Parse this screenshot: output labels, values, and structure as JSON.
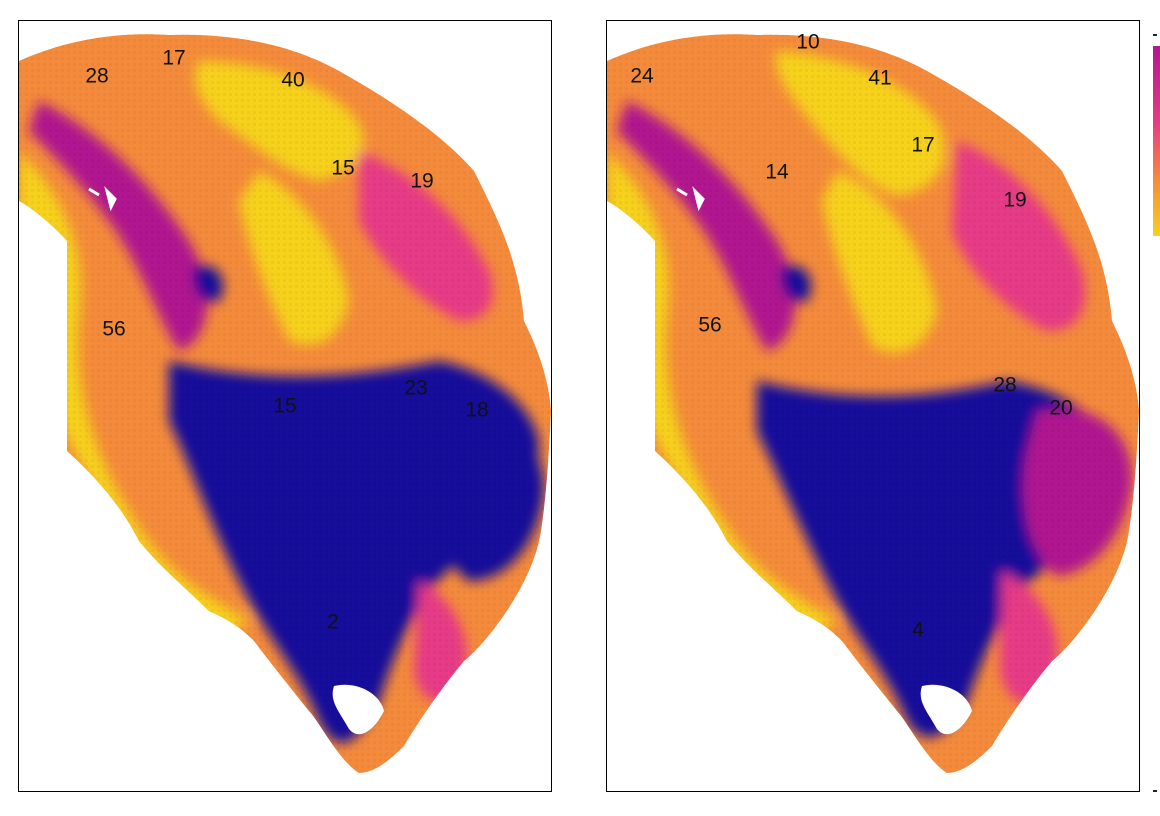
{
  "colors": {
    "low": "#17119a",
    "mid": "#b0188f",
    "midhigh": "#e63a86",
    "high": "#f48b3c",
    "top": "#f6d21d"
  },
  "maps": [
    {
      "labels": [
        "28",
        "17",
        "40",
        "15",
        "19",
        "56",
        "15",
        "23",
        "18",
        "2"
      ]
    },
    {
      "labels": [
        "24",
        "10",
        "41",
        "17",
        "14",
        "19",
        "56",
        "28",
        "20",
        "4"
      ]
    }
  ],
  "legend": {
    "orientation": "vertical",
    "placement": "right",
    "colormap": "plasma"
  }
}
